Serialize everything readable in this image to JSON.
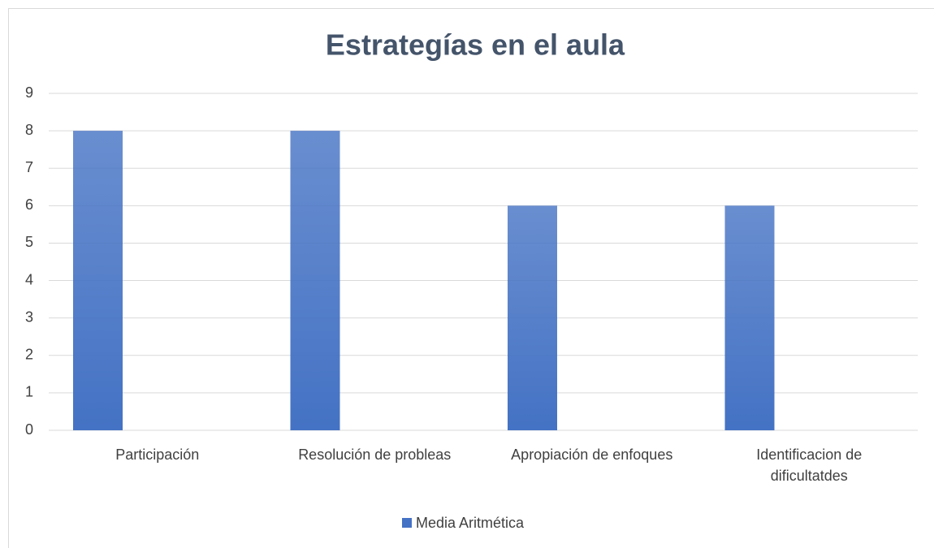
{
  "chart_data": {
    "type": "bar",
    "title": "Estrategías en el aula",
    "categories": [
      "Participación",
      "Resolución de probleas",
      "Apropiación de enfoques",
      "Identificacion de dificultatdes"
    ],
    "series": [
      {
        "name": "Media Aritmética",
        "color": "#4472c4",
        "values": [
          8,
          8,
          6,
          6
        ]
      }
    ],
    "ylim": [
      0,
      9
    ],
    "yticks": [
      0,
      1,
      2,
      3,
      4,
      5,
      6,
      7,
      8,
      9
    ],
    "grid": true,
    "legend": "bottom"
  }
}
